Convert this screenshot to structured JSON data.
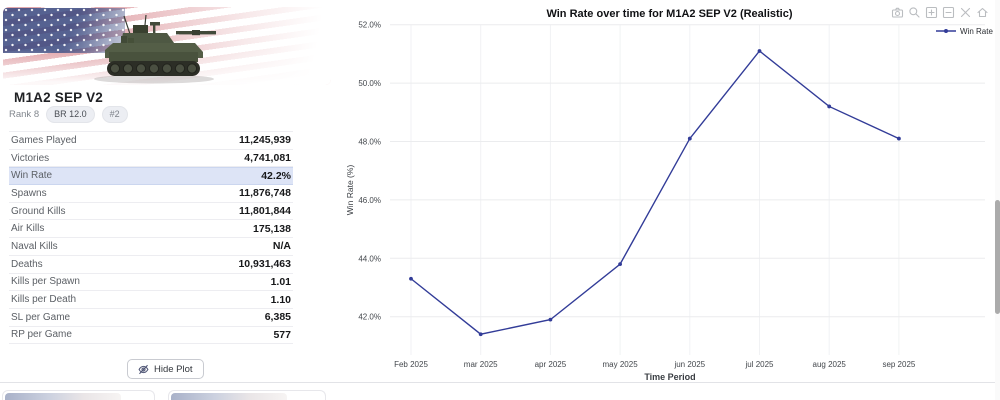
{
  "vehicle_card": {
    "title": "M1A2 SEP V2",
    "rank_label": "Rank 8",
    "badges": [
      {
        "label": "BR 12.0"
      },
      {
        "label": "#2"
      }
    ],
    "image": {
      "icon": "tank-image",
      "flag": "usa-flag-background"
    },
    "stats": [
      {
        "label": "Games Played",
        "value": "11,245,939",
        "highlighted": false
      },
      {
        "label": "Victories",
        "value": "4,741,081",
        "highlighted": false
      },
      {
        "label": "Win Rate",
        "value": "42.2%",
        "highlighted": true
      },
      {
        "label": "Spawns",
        "value": "11,876,748",
        "highlighted": false
      },
      {
        "label": "Ground Kills",
        "value": "11,801,844",
        "highlighted": false
      },
      {
        "label": "Air Kills",
        "value": "175,138",
        "highlighted": false
      },
      {
        "label": "Naval Kills",
        "value": "N/A",
        "highlighted": false
      },
      {
        "label": "Deaths",
        "value": "10,931,463",
        "highlighted": false
      },
      {
        "label": "Kills per Spawn",
        "value": "1.01",
        "highlighted": false
      },
      {
        "label": "Kills per Death",
        "value": "1.10",
        "highlighted": false
      },
      {
        "label": "SL per Game",
        "value": "6,385",
        "highlighted": false
      },
      {
        "label": "RP per Game",
        "value": "577",
        "highlighted": false
      }
    ],
    "hide_plot_button": {
      "label": "Hide Plot",
      "icon": "eye-off-icon"
    }
  },
  "chart": {
    "modebar": [
      "camera-icon",
      "zoom-icon",
      "zoom-in-icon",
      "zoom-out-icon",
      "autoscale-icon",
      "reset-axes-icon"
    ]
  },
  "chart_data": {
    "type": "line",
    "title": "Win Rate over time for M1A2 SEP V2 (Realistic)",
    "xlabel": "Time Period",
    "ylabel": "Win Rate (%)",
    "categories": [
      "Feb 2025",
      "mar 2025",
      "apr 2025",
      "may 2025",
      "jun 2025",
      "jul 2025",
      "aug 2025",
      "sep 2025"
    ],
    "series": [
      {
        "name": "Win Rate",
        "color": "#323c98",
        "values": [
          43.3,
          41.4,
          41.9,
          43.8,
          48.1,
          51.1,
          49.2,
          48.1
        ]
      }
    ],
    "yticks": {
      "labels": [
        "42.0%",
        "44.0%",
        "46.0%",
        "48.0%",
        "50.0%",
        "52.0%"
      ],
      "values": [
        42,
        44,
        46,
        48,
        50,
        52
      ]
    },
    "ylim": [
      40.8,
      52.3
    ],
    "grid": true,
    "legend_position": "top-right"
  },
  "colors": {
    "accent_line": "#323c98",
    "highlight_row_bg": "#dde4f6"
  }
}
